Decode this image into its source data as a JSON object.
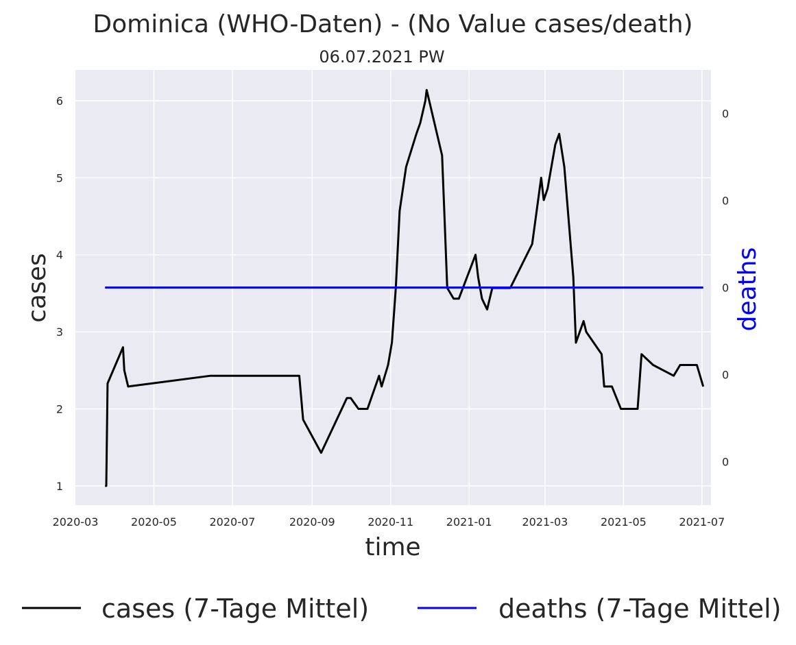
{
  "chart_data": {
    "type": "line",
    "title": "Dominica (WHO-Daten) - (No Value cases/death)",
    "subtitle": "06.07.2021 PW",
    "xlabel": "time",
    "ylabel": "cases",
    "y2label": "deaths",
    "xlim": [
      "2020-03-01",
      "2021-07-08"
    ],
    "ylim": [
      0.75,
      6.4
    ],
    "y2_display_range": [
      -1.0,
      1.0
    ],
    "x_ticks": [
      "2020-03",
      "2020-05",
      "2020-07",
      "2020-09",
      "2020-11",
      "2021-01",
      "2021-03",
      "2021-05",
      "2021-07"
    ],
    "y_ticks": [
      1,
      2,
      3,
      4,
      5,
      6
    ],
    "y2_ticks": [
      {
        "value": -0.8,
        "label": "0"
      },
      {
        "value": -0.4,
        "label": "0"
      },
      {
        "value": 0.0,
        "label": "0"
      },
      {
        "value": 0.4,
        "label": "0"
      },
      {
        "value": 0.8,
        "label": "0"
      }
    ],
    "grid": true,
    "legend_position": "bottom",
    "colors": {
      "cases": "#000000",
      "deaths": "#0000ff",
      "plot_bg": "#eaeaf2",
      "grid": "#ffffff"
    },
    "series": [
      {
        "name": "cases (7-Tage Mittel)",
        "axis": "left",
        "points": [
          [
            "2020-03-24",
            1.0
          ],
          [
            "2020-03-25",
            1.0
          ],
          [
            "2020-03-26",
            2.33
          ],
          [
            "2020-04-07",
            2.8
          ],
          [
            "2020-04-08",
            2.5
          ],
          [
            "2020-04-11",
            2.29
          ],
          [
            "2020-06-14",
            2.43
          ],
          [
            "2020-08-22",
            2.43
          ],
          [
            "2020-08-25",
            1.86
          ],
          [
            "2020-09-08",
            1.43
          ],
          [
            "2020-09-28",
            2.14
          ],
          [
            "2020-10-01",
            2.14
          ],
          [
            "2020-10-07",
            2.0
          ],
          [
            "2020-10-14",
            2.0
          ],
          [
            "2020-10-23",
            2.43
          ],
          [
            "2020-10-25",
            2.29
          ],
          [
            "2020-10-30",
            2.57
          ],
          [
            "2020-11-02",
            2.86
          ],
          [
            "2020-11-05",
            3.57
          ],
          [
            "2020-11-08",
            4.57
          ],
          [
            "2020-11-13",
            5.14
          ],
          [
            "2020-11-21",
            5.57
          ],
          [
            "2020-11-24",
            5.71
          ],
          [
            "2020-11-28",
            6.0
          ],
          [
            "2020-11-29",
            6.14
          ],
          [
            "2020-12-11",
            5.29
          ],
          [
            "2020-12-13",
            4.43
          ],
          [
            "2020-12-15",
            3.57
          ],
          [
            "2020-12-20",
            3.43
          ],
          [
            "2020-12-24",
            3.43
          ],
          [
            "2021-01-06",
            4.0
          ],
          [
            "2021-01-08",
            3.71
          ],
          [
            "2021-01-11",
            3.43
          ],
          [
            "2021-01-15",
            3.29
          ],
          [
            "2021-01-19",
            3.57
          ],
          [
            "2021-02-02",
            3.57
          ],
          [
            "2021-02-19",
            4.14
          ],
          [
            "2021-02-26",
            5.0
          ],
          [
            "2021-02-28",
            4.71
          ],
          [
            "2021-03-03",
            4.86
          ],
          [
            "2021-03-09",
            5.43
          ],
          [
            "2021-03-12",
            5.57
          ],
          [
            "2021-03-16",
            5.14
          ],
          [
            "2021-03-23",
            3.71
          ],
          [
            "2021-03-25",
            2.86
          ],
          [
            "2021-03-31",
            3.14
          ],
          [
            "2021-04-02",
            3.0
          ],
          [
            "2021-04-14",
            2.71
          ],
          [
            "2021-04-16",
            2.29
          ],
          [
            "2021-04-22",
            2.29
          ],
          [
            "2021-04-29",
            2.0
          ],
          [
            "2021-05-12",
            2.0
          ],
          [
            "2021-05-15",
            2.71
          ],
          [
            "2021-05-24",
            2.57
          ],
          [
            "2021-06-09",
            2.43
          ],
          [
            "2021-06-14",
            2.57
          ],
          [
            "2021-06-27",
            2.57
          ],
          [
            "2021-07-02",
            2.29
          ]
        ]
      },
      {
        "name": "deaths (7-Tage Mittel)",
        "axis": "right",
        "points": [
          [
            "2020-03-24",
            0
          ],
          [
            "2021-07-02",
            0
          ]
        ]
      }
    ]
  }
}
